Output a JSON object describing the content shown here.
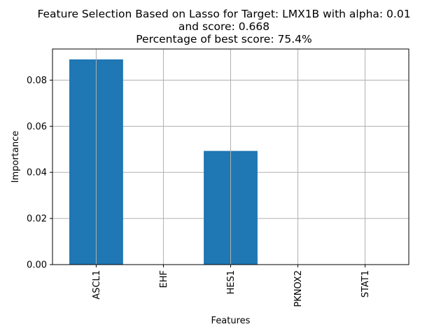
{
  "chart_data": {
    "type": "bar",
    "title_lines": [
      "Feature Selection Based on Lasso for Target: LMX1B with alpha: 0.01",
      "and score: 0.668",
      "Percentage of best score: 75.4%"
    ],
    "xlabel": "Features",
    "ylabel": "Importance",
    "categories": [
      "ASCL1",
      "EHF",
      "HES1",
      "PKNOX2",
      "STAT1"
    ],
    "values": [
      0.089,
      0.0,
      0.0493,
      0.0,
      0.0
    ],
    "ylim": [
      0,
      0.0935
    ],
    "yticks": [
      0.0,
      0.02,
      0.04,
      0.06,
      0.08
    ],
    "ytick_labels": [
      "0.00",
      "0.02",
      "0.04",
      "0.06",
      "0.08"
    ],
    "grid": true,
    "bar_color": "#1f77b4",
    "grid_color": "#b0b0b0"
  }
}
